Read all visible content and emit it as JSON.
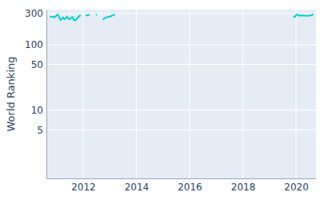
{
  "chart_data": {
    "type": "line",
    "y_label": "World Ranking",
    "x": [
      2010.75,
      2010.8,
      2010.85,
      2010.9,
      2010.95,
      2011.0,
      2011.05,
      2011.15,
      2011.2,
      2011.25,
      2011.3,
      2011.35,
      2011.4,
      2011.45,
      2011.5,
      2011.55,
      2011.6,
      2011.65,
      2011.7,
      2011.75,
      2011.8,
      2011.9,
      null,
      2012.1,
      2012.15,
      2012.25,
      null,
      2012.48,
      2012.52,
      null,
      2012.75,
      2012.8,
      2012.9,
      2013.0,
      2013.1,
      2013.2,
      null,
      2019.9,
      2019.95,
      2020.0,
      2020.05,
      2020.1,
      2020.2,
      2020.3,
      2020.4,
      2020.5,
      2020.6,
      2020.65
    ],
    "values": [
      265,
      270,
      268,
      262,
      270,
      280,
      290,
      240,
      250,
      260,
      245,
      255,
      270,
      250,
      245,
      260,
      265,
      240,
      235,
      245,
      260,
      285,
      null,
      285,
      280,
      290,
      null,
      285,
      290,
      null,
      240,
      255,
      265,
      270,
      280,
      290,
      null,
      270,
      265,
      285,
      290,
      280,
      282,
      280,
      278,
      280,
      285,
      295
    ],
    "color": "#00cfd0",
    "xlim": [
      2010.62,
      2020.75
    ],
    "xticks": [
      2012,
      2014,
      2016,
      2018,
      2020
    ],
    "ylim": [
      0.9,
      345
    ],
    "yticks": [
      5,
      10,
      50,
      100,
      300
    ],
    "log": "y",
    "grid": true
  }
}
